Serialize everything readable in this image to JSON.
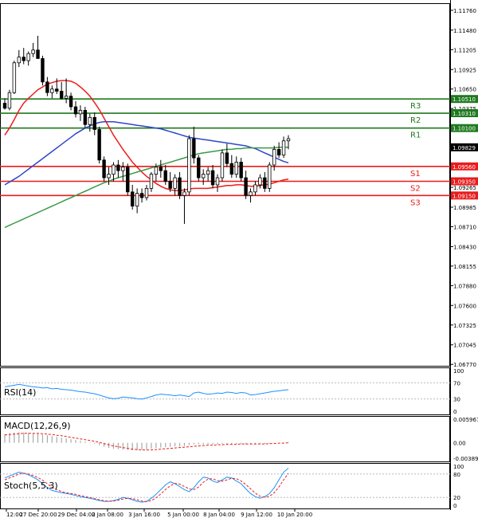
{
  "chart_data": {
    "type": "candlestick",
    "title": "",
    "main": {
      "ylim": [
        1.0675,
        1.1186
      ],
      "y_ticks": [
        "1.11760",
        "1.11480",
        "1.11205",
        "1.10925",
        "1.10650",
        "1.10375",
        "1.10095",
        "1.09820",
        "1.09540",
        "1.09265",
        "1.08985",
        "1.08710",
        "1.08430",
        "1.08155",
        "1.07880",
        "1.07600",
        "1.07325",
        "1.07045",
        "1.06770"
      ],
      "candles": [
        [
          1.1045,
          1.1052,
          1.1036,
          1.1038
        ],
        [
          1.1038,
          1.1064,
          1.1035,
          1.106
        ],
        [
          1.106,
          1.1105,
          1.1058,
          1.1102
        ],
        [
          1.1102,
          1.112,
          1.1096,
          1.111
        ],
        [
          1.111,
          1.1123,
          1.11,
          1.1105
        ],
        [
          1.1105,
          1.1118,
          1.1098,
          1.1115
        ],
        [
          1.1115,
          1.113,
          1.111,
          1.112
        ],
        [
          1.112,
          1.114,
          1.111,
          1.1108
        ],
        [
          1.1108,
          1.1112,
          1.107,
          1.1075
        ],
        [
          1.1075,
          1.1082,
          1.1055,
          1.106
        ],
        [
          1.106,
          1.107,
          1.1052,
          1.1065
        ],
        [
          1.1065,
          1.108,
          1.1058,
          1.1062
        ],
        [
          1.1062,
          1.1075,
          1.105,
          1.1052
        ],
        [
          1.1052,
          1.108,
          1.1045,
          1.1055
        ],
        [
          1.1055,
          1.106,
          1.1035,
          1.104
        ],
        [
          1.104,
          1.1048,
          1.1025,
          1.103
        ],
        [
          1.103,
          1.1042,
          1.102,
          1.1035
        ],
        [
          1.1035,
          1.104,
          1.101,
          1.1015
        ],
        [
          1.1015,
          1.103,
          1.1005,
          1.1025
        ],
        [
          1.1025,
          1.1032,
          1.1,
          1.1008
        ],
        [
          1.1008,
          1.1012,
          1.096,
          1.0965
        ],
        [
          1.0965,
          1.097,
          1.0935,
          1.094
        ],
        [
          1.094,
          1.0955,
          1.093,
          1.0945
        ],
        [
          1.0945,
          1.0962,
          1.0935,
          1.0958
        ],
        [
          1.0958,
          1.0965,
          1.094,
          1.095
        ],
        [
          1.095,
          1.0962,
          1.0935,
          1.0955
        ],
        [
          1.0955,
          1.096,
          1.0915,
          1.092
        ],
        [
          1.092,
          1.093,
          1.0895,
          1.09
        ],
        [
          1.09,
          1.0925,
          1.089,
          1.0918
        ],
        [
          1.0918,
          1.0925,
          1.0905,
          1.0912
        ],
        [
          1.0912,
          1.093,
          1.0908,
          1.0925
        ],
        [
          1.0925,
          1.0948,
          1.092,
          1.0945
        ],
        [
          1.0945,
          1.096,
          1.0935,
          1.0955
        ],
        [
          1.0955,
          1.0965,
          1.094,
          1.095
        ],
        [
          1.095,
          1.0958,
          1.093,
          1.0935
        ],
        [
          1.0935,
          1.0948,
          1.092,
          1.0925
        ],
        [
          1.0925,
          1.0945,
          1.0915,
          1.094
        ],
        [
          1.094,
          1.0948,
          1.091,
          1.0915
        ],
        [
          1.0915,
          1.0925,
          1.0875,
          1.092
        ],
        [
          1.092,
          1.1,
          1.0915,
          1.0995
        ],
        [
          1.0995,
          1.1012,
          1.096,
          1.0968
        ],
        [
          1.0968,
          1.0972,
          1.0935,
          1.094
        ],
        [
          1.094,
          1.0952,
          1.093,
          1.0945
        ],
        [
          1.0945,
          1.0955,
          1.0935,
          1.095
        ],
        [
          1.095,
          1.0958,
          1.0925,
          1.093
        ],
        [
          1.093,
          1.0945,
          1.092,
          1.094
        ],
        [
          1.094,
          1.098,
          1.0935,
          1.0975
        ],
        [
          1.0975,
          1.0988,
          1.0955,
          1.096
        ],
        [
          1.096,
          1.0972,
          1.094,
          1.0945
        ],
        [
          1.0945,
          1.097,
          1.094,
          1.0962
        ],
        [
          1.0962,
          1.0968,
          1.0935,
          1.094
        ],
        [
          1.094,
          1.095,
          1.091,
          1.0915
        ],
        [
          1.0915,
          1.0925,
          1.0905,
          1.092
        ],
        [
          1.092,
          1.0935,
          1.0915,
          1.093
        ],
        [
          1.093,
          1.0945,
          1.0925,
          1.094
        ],
        [
          1.094,
          1.0948,
          1.092,
          1.0925
        ],
        [
          1.0925,
          1.0962,
          1.092,
          1.0958
        ],
        [
          1.0958,
          1.0985,
          1.095,
          1.098
        ],
        [
          1.098,
          1.099,
          1.0968,
          1.0972
        ],
        [
          1.0972,
          1.0998,
          1.0968,
          1.0992
        ],
        [
          1.0992,
          1.1,
          1.098,
          1.0995
        ]
      ],
      "ma_series": [
        {
          "color": "#ee1c1c",
          "values": [
            1.1,
            1.101,
            1.1022,
            1.1035,
            1.1045,
            1.1052,
            1.1058,
            1.1064,
            1.1068,
            1.1072,
            1.1074,
            1.1076,
            1.1077,
            1.1077,
            1.1076,
            1.1073,
            1.1068,
            1.1062,
            1.1055,
            1.1046,
            1.1036,
            1.1024,
            1.1012,
            1.1,
            1.099,
            1.098,
            1.0971,
            1.0962,
            1.0955,
            1.0948,
            1.0942,
            1.0937,
            1.0932,
            1.0928,
            1.0925,
            1.0923,
            1.0922,
            1.0922,
            1.0923,
            1.0924,
            1.0925,
            1.0925,
            1.0925,
            1.0925,
            1.0926,
            1.0927,
            1.0928,
            1.0929,
            1.0929,
            1.093,
            1.093,
            1.0929,
            1.0928,
            1.0928,
            1.0929,
            1.093,
            1.0931,
            1.0933,
            1.0935,
            1.0937,
            1.0938
          ]
        },
        {
          "color": "#2f47c8",
          "values": [
            1.093,
            1.0934,
            1.0938,
            1.0942,
            1.0947,
            1.0952,
            1.0957,
            1.0962,
            1.0967,
            1.0972,
            1.0977,
            1.0982,
            1.0987,
            1.0992,
            1.0997,
            1.1002,
            1.1006,
            1.101,
            1.1013,
            1.1016,
            1.1018,
            1.1019,
            1.1019,
            1.1019,
            1.1018,
            1.1017,
            1.1016,
            1.1015,
            1.1014,
            1.1013,
            1.1012,
            1.1011,
            1.101,
            1.1009,
            1.1007,
            1.1005,
            1.1003,
            1.1001,
            1.0999,
            1.0997,
            1.0996,
            1.0995,
            1.0994,
            1.0993,
            1.0992,
            1.0991,
            1.099,
            1.0989,
            1.0988,
            1.0987,
            1.0986,
            1.0985,
            1.0983,
            1.0981,
            1.0978,
            1.0975,
            1.0972,
            1.0969,
            1.0966,
            1.0963,
            1.0961
          ]
        },
        {
          "color": "#3a9a4a",
          "values": [
            1.087,
            1.0873,
            1.0876,
            1.0879,
            1.0882,
            1.0885,
            1.0888,
            1.0891,
            1.0894,
            1.0897,
            1.09,
            1.0903,
            1.0906,
            1.0909,
            1.0912,
            1.0915,
            1.0918,
            1.0921,
            1.0924,
            1.0927,
            1.093,
            1.0933,
            1.0935,
            1.0938,
            1.094,
            1.0942,
            1.0944,
            1.0946,
            1.0948,
            1.095,
            1.0952,
            1.0954,
            1.0956,
            1.0958,
            1.096,
            1.0962,
            1.0964,
            1.0966,
            1.0968,
            1.097,
            1.0972,
            1.0974,
            1.0975,
            1.0976,
            1.0977,
            1.0978,
            1.0979,
            1.098,
            1.098,
            1.0981,
            1.0981,
            1.0982,
            1.0982,
            1.0982,
            1.0982,
            1.0982,
            1.0982,
            1.0982,
            1.0983,
            1.0983,
            1.0983
          ]
        }
      ],
      "levels": [
        {
          "name": "R3",
          "value": 1.1051,
          "label": "1.10510",
          "color": "#1f7a1f"
        },
        {
          "name": "R2",
          "value": 1.1031,
          "label": "1.10310",
          "color": "#1f7a1f"
        },
        {
          "name": "R1",
          "value": 1.101,
          "label": "1.10100",
          "color": "#1f7a1f"
        },
        {
          "name": "S1",
          "value": 1.0956,
          "label": "1.09560",
          "color": "#e81c1c"
        },
        {
          "name": "S2",
          "value": 1.0935,
          "label": "1.09350",
          "color": "#e81c1c"
        },
        {
          "name": "S3",
          "value": 1.0915,
          "label": "1.09150",
          "color": "#e81c1c"
        }
      ],
      "current_price": {
        "value": 1.09829,
        "label": "1.09829"
      }
    },
    "rsi": {
      "label": "RSI(14)",
      "ylim": [
        0,
        100
      ],
      "y_ticks": [
        "100",
        "70",
        "30",
        "0"
      ],
      "levels": [
        70,
        30
      ],
      "values": [
        60,
        62,
        64,
        66,
        64,
        62,
        60,
        59,
        57,
        58,
        55,
        56,
        54,
        53,
        52,
        50,
        48,
        47,
        45,
        43,
        40,
        36,
        33,
        31,
        32,
        35,
        34,
        33,
        31,
        30,
        33,
        36,
        40,
        42,
        41,
        40,
        38,
        40,
        38,
        36,
        45,
        47,
        44,
        42,
        43,
        45,
        44,
        47,
        46,
        44,
        46,
        45,
        40,
        41,
        43,
        45,
        47,
        49,
        50,
        52,
        53
      ]
    },
    "macd": {
      "label": "MACD(12,26,9)",
      "ylim": [
        -0.003896,
        0.005967
      ],
      "y_ticks": [
        "0.005967",
        "0.00",
        "-0.003896"
      ],
      "histogram": [
        0.0022,
        0.0024,
        0.0026,
        0.0027,
        0.0026,
        0.0025,
        0.0024,
        0.0023,
        0.0021,
        0.0019,
        0.0017,
        0.0015,
        0.0013,
        0.0011,
        0.0009,
        0.0007,
        0.0005,
        0.0003,
        0.0001,
        -0.0002,
        -0.0006,
        -0.001,
        -0.0013,
        -0.0015,
        -0.0016,
        -0.0017,
        -0.0018,
        -0.0019,
        -0.0019,
        -0.0018,
        -0.0017,
        -0.0015,
        -0.0013,
        -0.0012,
        -0.0011,
        -0.001,
        -0.0009,
        -0.0009,
        -0.0008,
        -0.0006,
        -0.0004,
        -0.0004,
        -0.0004,
        -0.0004,
        -0.0004,
        -0.0004,
        -0.0003,
        -0.0003,
        -0.0003,
        -0.0003,
        -0.0003,
        -0.0004,
        -0.0004,
        -0.0004,
        -0.0003,
        -0.0003,
        -0.0002,
        -0.0001,
        0.0,
        0.0001,
        0.0001
      ],
      "signal": [
        0.002,
        0.0021,
        0.0022,
        0.0023,
        0.0024,
        0.0024,
        0.0024,
        0.0024,
        0.0023,
        0.0022,
        0.0021,
        0.0019,
        0.0018,
        0.0016,
        0.0014,
        0.0012,
        0.001,
        0.0008,
        0.0006,
        0.0004,
        0.0001,
        -0.0002,
        -0.0005,
        -0.0008,
        -0.001,
        -0.0012,
        -0.0014,
        -0.0016,
        -0.0017,
        -0.0018,
        -0.0018,
        -0.0018,
        -0.0017,
        -0.0016,
        -0.0015,
        -0.0014,
        -0.0013,
        -0.0012,
        -0.0011,
        -0.001,
        -0.0009,
        -0.0008,
        -0.0007,
        -0.0006,
        -0.0006,
        -0.0005,
        -0.0005,
        -0.0004,
        -0.0004,
        -0.0004,
        -0.0003,
        -0.0003,
        -0.0003,
        -0.0003,
        -0.0003,
        -0.0003,
        -0.0002,
        -0.0002,
        -0.0001,
        -0.0001,
        0.0
      ]
    },
    "stoch": {
      "label": "Stoch(5,5,3)",
      "ylim": [
        0,
        100
      ],
      "y_ticks": [
        "100",
        "80",
        "20",
        "0"
      ],
      "levels": [
        80,
        20
      ],
      "k": [
        70,
        75,
        80,
        85,
        82,
        78,
        72,
        65,
        55,
        45,
        38,
        35,
        32,
        30,
        28,
        25,
        22,
        20,
        18,
        15,
        12,
        10,
        10,
        12,
        15,
        20,
        18,
        14,
        10,
        8,
        10,
        18,
        28,
        40,
        52,
        60,
        55,
        48,
        40,
        35,
        45,
        60,
        72,
        70,
        62,
        58,
        65,
        72,
        70,
        62,
        55,
        42,
        30,
        22,
        18,
        22,
        30,
        45,
        65,
        85,
        95
      ],
      "d": [
        65,
        70,
        75,
        80,
        82,
        80,
        76,
        71,
        64,
        55,
        46,
        40,
        35,
        32,
        30,
        28,
        25,
        22,
        20,
        17,
        14,
        12,
        10,
        11,
        13,
        16,
        18,
        17,
        14,
        11,
        9,
        12,
        19,
        29,
        40,
        50,
        56,
        54,
        48,
        42,
        40,
        47,
        59,
        67,
        68,
        63,
        62,
        65,
        69,
        68,
        62,
        53,
        42,
        31,
        23,
        21,
        23,
        32,
        47,
        65,
        82
      ]
    },
    "x_labels": [
      "12:00",
      "27 Dec 20:00",
      "29 Dec 04:00",
      "2 Jan 08:00",
      "3 Jan 16:00",
      "5 Jan 00:00",
      "8 Jan 04:00",
      "9 Jan 12:00",
      "10 Jan 20:00"
    ]
  }
}
